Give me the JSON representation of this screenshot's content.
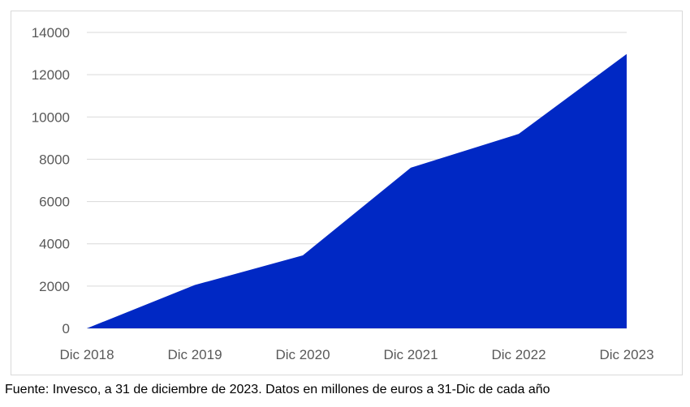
{
  "chart_data": {
    "type": "area",
    "categories": [
      "Dic 2018",
      "Dic 2019",
      "Dic 2020",
      "Dic 2021",
      "Dic 2022",
      "Dic 2023"
    ],
    "series": [
      {
        "values": [
          0,
          2050,
          3450,
          7600,
          9200,
          12980
        ]
      }
    ],
    "yticks": [
      0,
      2000,
      4000,
      6000,
      8000,
      10000,
      12000,
      14000
    ],
    "ylim": [
      0,
      14000
    ],
    "grid": true,
    "legend": "none",
    "colors": {
      "area": "#0028c4",
      "grid": "#d9d9d9",
      "axis_text": "#595959"
    }
  },
  "source_note": "Fuente: Invesco, a 31 de diciembre de 2023. Datos en millones de euros a 31-Dic de cada año"
}
